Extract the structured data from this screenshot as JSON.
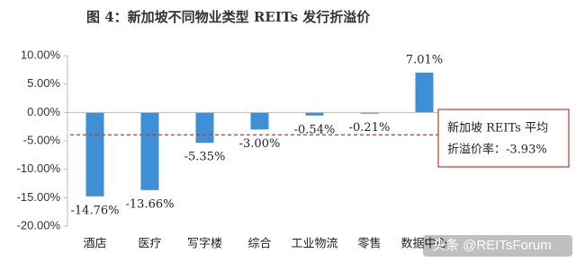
{
  "chart_data": {
    "type": "bar",
    "title": "图 4：新加坡不同物业类型 REITs 发行折溢价",
    "categories": [
      "酒店",
      "医疗",
      "写字楼",
      "综合",
      "工业物流",
      "零售",
      "数据中心"
    ],
    "values": [
      -14.76,
      -13.66,
      -5.35,
      -3.0,
      -0.54,
      -0.21,
      7.01
    ],
    "value_labels": [
      "-14.76%",
      "-13.66%",
      "-5.35%",
      "-3.00%",
      "-0.54%",
      "-0.21%",
      "7.01%"
    ],
    "color": "#3f8fd6",
    "ylim": [
      -20,
      10
    ],
    "yticks": [
      {
        "value": 10,
        "label": "10.00%"
      },
      {
        "value": 5,
        "label": "5.00%"
      },
      {
        "value": 0,
        "label": "0.00%"
      },
      {
        "value": -5,
        "label": "-5.00%"
      },
      {
        "value": -10,
        "label": "-10.00%"
      },
      {
        "value": -15,
        "label": "-15.00%"
      },
      {
        "value": -20,
        "label": "-20.00%"
      }
    ],
    "average": -3.93,
    "average_color": "#c0392b",
    "annotation": [
      "新加坡 REITs 平均",
      "折溢价率：-3.93%"
    ],
    "watermark": "头条 @REITsForum"
  }
}
